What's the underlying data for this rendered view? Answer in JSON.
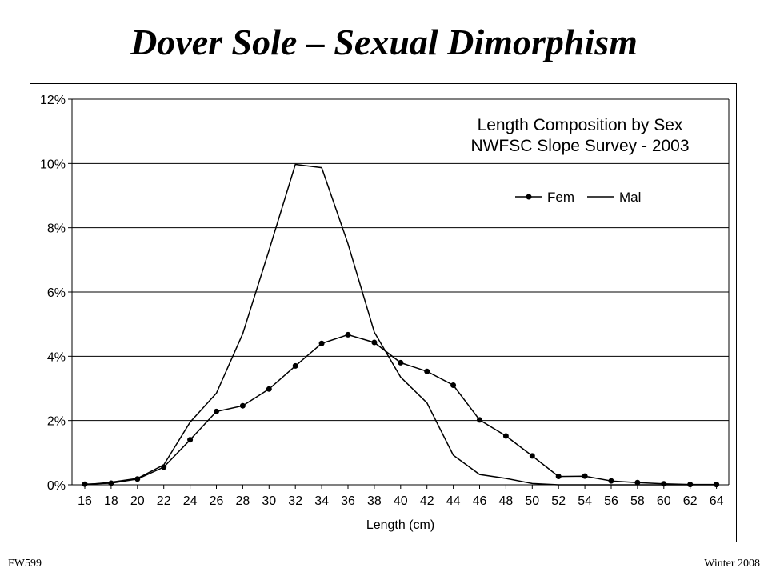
{
  "slide": {
    "title": "Dover Sole – Sexual Dimorphism",
    "footer_left": "FW599",
    "footer_right": "Winter 2008"
  },
  "chart_data": {
    "type": "line",
    "title_lines": [
      "Length Composition by Sex",
      "NWFSC Slope Survey - 2003"
    ],
    "xlabel": "Length (cm)",
    "ylabel": "",
    "x": [
      16,
      18,
      20,
      22,
      24,
      26,
      28,
      30,
      32,
      34,
      36,
      38,
      40,
      42,
      44,
      46,
      48,
      50,
      52,
      54,
      56,
      58,
      60,
      62,
      64
    ],
    "x_tick_labels": [
      "16",
      "18",
      "20",
      "22",
      "24",
      "26",
      "28",
      "30",
      "32",
      "34",
      "36",
      "38",
      "40",
      "42",
      "44",
      "46",
      "48",
      "50",
      "52",
      "54",
      "56",
      "58",
      "60",
      "62",
      "64"
    ],
    "ylim": [
      0,
      12
    ],
    "y_ticks": [
      0,
      2,
      4,
      6,
      8,
      10,
      12
    ],
    "y_tick_labels": [
      "0%",
      "2%",
      "4%",
      "6%",
      "8%",
      "10%",
      "12%"
    ],
    "grid": "horizontal",
    "legend_position": "top-right",
    "series": [
      {
        "name": "Fem",
        "marker": "circle",
        "color": "#000000",
        "values": [
          0.02,
          0.05,
          0.18,
          0.55,
          1.4,
          2.28,
          2.46,
          2.98,
          3.7,
          4.4,
          4.67,
          4.43,
          3.8,
          3.53,
          3.1,
          2.02,
          1.52,
          0.9,
          0.26,
          0.27,
          0.12,
          0.07,
          0.03,
          0.01,
          0.01
        ]
      },
      {
        "name": "Mal",
        "marker": "none",
        "color": "#000000",
        "values": [
          0.0,
          0.08,
          0.2,
          0.62,
          1.95,
          2.85,
          4.7,
          7.3,
          9.97,
          9.87,
          7.5,
          4.75,
          3.35,
          2.55,
          0.92,
          0.32,
          0.2,
          0.04,
          0.0,
          0.0,
          0.0,
          0.0,
          0.0,
          0.0,
          0.0
        ]
      }
    ]
  }
}
